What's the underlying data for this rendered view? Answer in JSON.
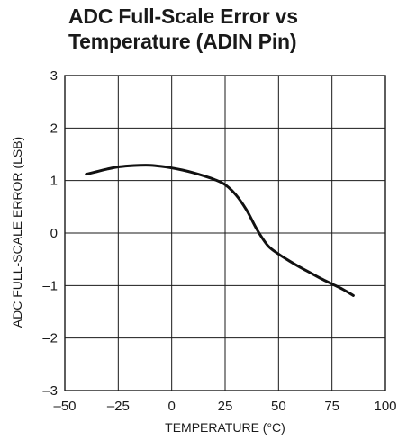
{
  "chart_data": {
    "type": "line",
    "title_lines": [
      "ADC Full-Scale Error vs",
      "Temperature (ADIN Pin)"
    ],
    "xlabel": "TEMPERATURE (°C)",
    "ylabel": "ADC FULL-SCALE ERROR (LSB)",
    "xlim": [
      -50,
      100
    ],
    "ylim": [
      -3,
      3
    ],
    "x_ticks": [
      -50,
      -25,
      0,
      25,
      50,
      75,
      100
    ],
    "x_tick_labels": [
      "–50",
      "–25",
      "0",
      "25",
      "50",
      "75",
      "100"
    ],
    "y_ticks": [
      -3,
      -2,
      -1,
      0,
      1,
      2,
      3
    ],
    "y_tick_labels": [
      "–3",
      "–2",
      "–1",
      "0",
      "1",
      "2",
      "3"
    ],
    "grid": true,
    "line_color": "#111111",
    "series": [
      {
        "x": [
          -40,
          -35,
          -30,
          -25,
          -20,
          -15,
          -10,
          -5,
          0,
          5,
          10,
          15,
          20,
          25,
          30,
          35,
          40,
          45,
          50,
          55,
          60,
          65,
          70,
          75,
          80,
          85
        ],
        "y": [
          1.12,
          1.17,
          1.22,
          1.26,
          1.28,
          1.29,
          1.29,
          1.27,
          1.24,
          1.2,
          1.15,
          1.09,
          1.02,
          0.92,
          0.73,
          0.44,
          0.06,
          -0.24,
          -0.4,
          -0.53,
          -0.65,
          -0.76,
          -0.87,
          -0.97,
          -1.07,
          -1.19
        ]
      }
    ]
  }
}
